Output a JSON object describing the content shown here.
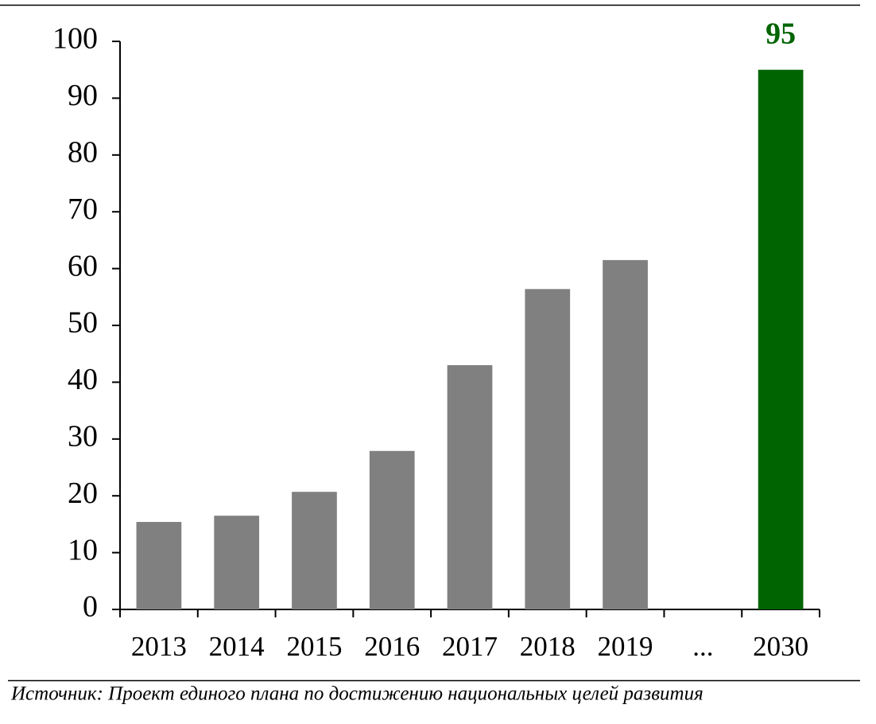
{
  "chart_data": {
    "type": "bar",
    "categories": [
      "2013",
      "2014",
      "2015",
      "2016",
      "2017",
      "2018",
      "2019",
      "...",
      "2030"
    ],
    "values": [
      15.4,
      16.5,
      20.7,
      27.9,
      43.0,
      56.4,
      61.5,
      null,
      95
    ],
    "value_labels": [
      null,
      null,
      null,
      null,
      null,
      null,
      null,
      null,
      "95"
    ],
    "colors": [
      "#808080",
      "#808080",
      "#808080",
      "#808080",
      "#808080",
      "#808080",
      "#808080",
      "#808080",
      "#006400"
    ],
    "ylim": [
      0,
      100
    ],
    "yticks": [
      0,
      10,
      20,
      30,
      40,
      50,
      60,
      70,
      80,
      90,
      100
    ],
    "grid": false,
    "source": "Источник: Проект единого плана по достижению национальных целей развития"
  }
}
